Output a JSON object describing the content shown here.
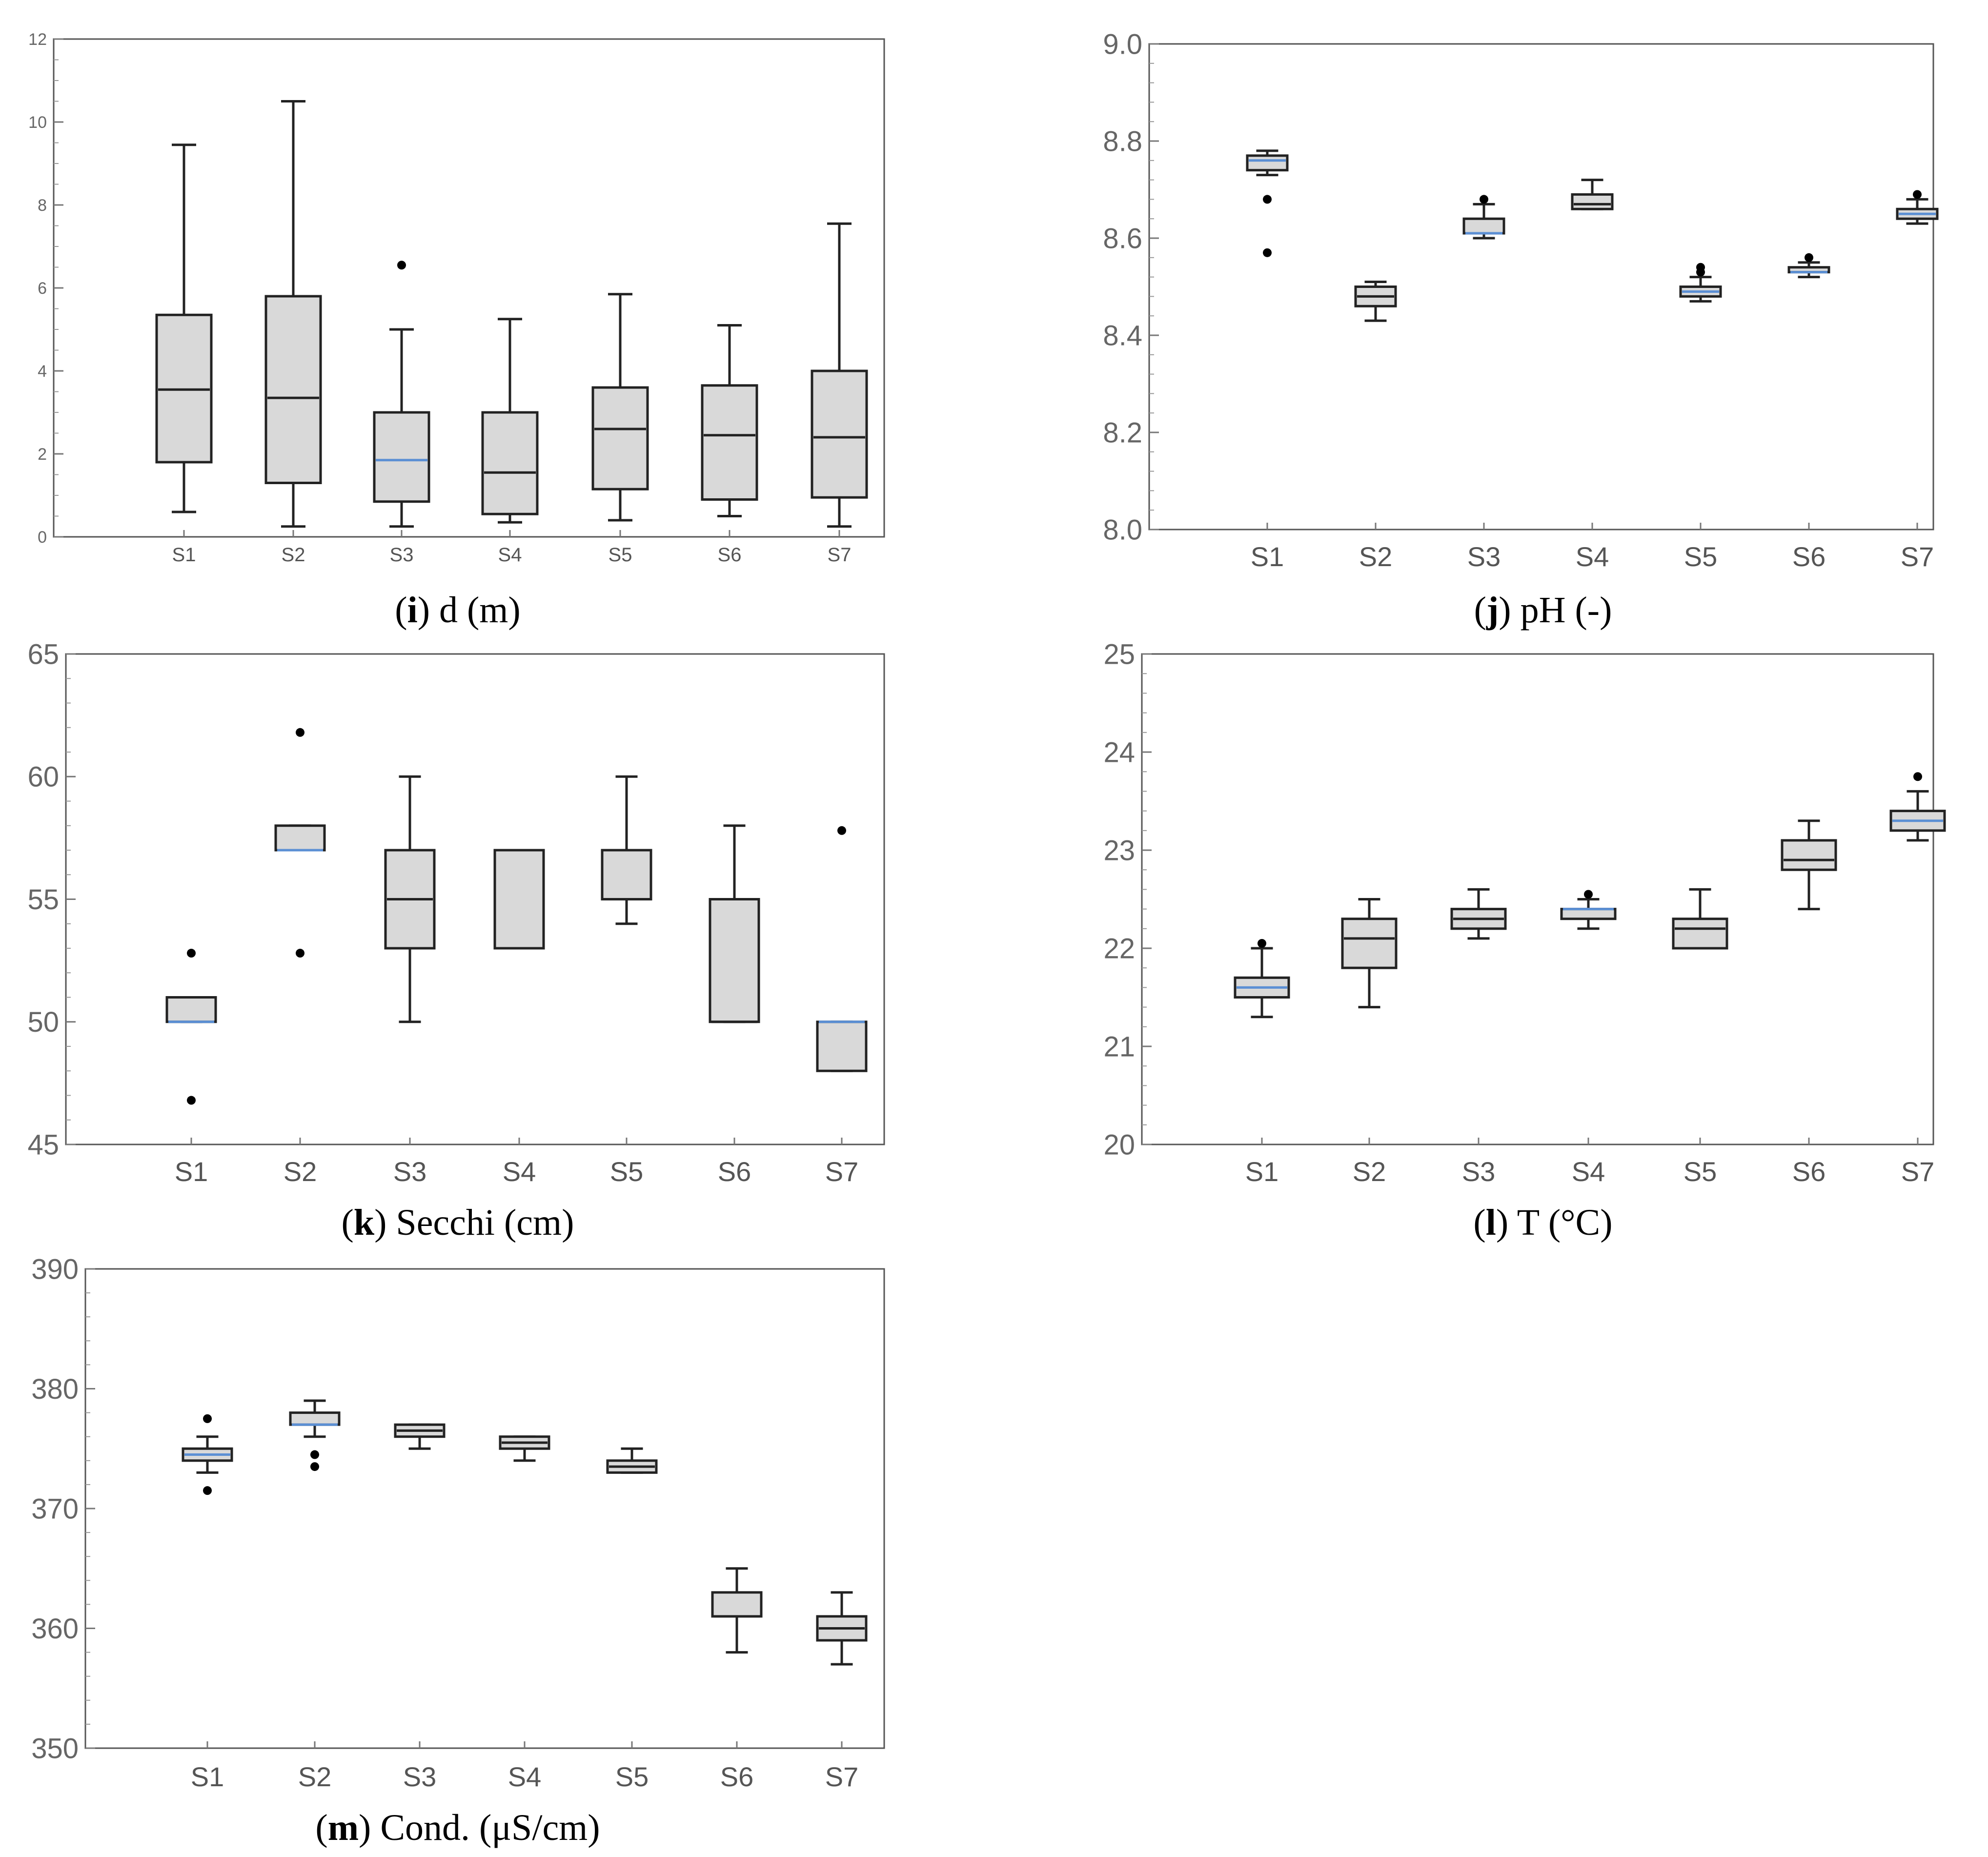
{
  "colors": {
    "box_fill": "#d9d9d9",
    "median_dark": "#222222",
    "median_blue": "#5b8fd4",
    "frame": "#555555"
  },
  "chart_data": [
    {
      "id": "i",
      "type": "box",
      "title": "(i) d (m)",
      "caption_letter": "i",
      "caption_rest": " d (m)",
      "ylim": [
        0,
        12
      ],
      "yticks": [
        0,
        2,
        4,
        6,
        8,
        10,
        12
      ],
      "ytick_labels": [
        "0",
        "2",
        "4",
        "6",
        "8",
        "10",
        "12"
      ],
      "categories": [
        "S1",
        "S2",
        "S3",
        "S4",
        "S5",
        "S6",
        "S7"
      ],
      "boxes": [
        {
          "min": 0.6,
          "q1": 1.8,
          "median": 3.55,
          "q3": 5.35,
          "max": 9.45,
          "median_color": "dark",
          "outliers": []
        },
        {
          "min": 0.25,
          "q1": 1.3,
          "median": 3.35,
          "q3": 5.8,
          "max": 10.5,
          "median_color": "dark",
          "outliers": []
        },
        {
          "min": 0.25,
          "q1": 0.85,
          "median": 1.85,
          "q3": 3.0,
          "max": 5.0,
          "median_color": "blue",
          "outliers": [
            6.55
          ]
        },
        {
          "min": 0.35,
          "q1": 0.55,
          "median": 1.55,
          "q3": 3.0,
          "max": 5.25,
          "median_color": "dark",
          "outliers": []
        },
        {
          "min": 0.4,
          "q1": 1.15,
          "median": 2.6,
          "q3": 3.6,
          "max": 5.85,
          "median_color": "dark",
          "outliers": []
        },
        {
          "min": 0.5,
          "q1": 0.9,
          "median": 2.45,
          "q3": 3.65,
          "max": 5.1,
          "median_color": "dark",
          "outliers": []
        },
        {
          "min": 0.25,
          "q1": 0.95,
          "median": 2.4,
          "q3": 4.0,
          "max": 7.55,
          "median_color": "dark",
          "outliers": []
        }
      ]
    },
    {
      "id": "j",
      "type": "box",
      "title": "(j) pH (-)",
      "caption_letter": "j",
      "caption_rest": " pH (-)",
      "ylim": [
        8.0,
        9.0
      ],
      "yticks": [
        8.0,
        8.2,
        8.4,
        8.6,
        8.8,
        9.0
      ],
      "ytick_labels": [
        "8.0",
        "8.2",
        "8.4",
        "8.6",
        "8.8",
        "9.0"
      ],
      "categories": [
        "S1",
        "S2",
        "S3",
        "S4",
        "S5",
        "S6",
        "S7"
      ],
      "boxes": [
        {
          "min": 8.73,
          "q1": 8.74,
          "median": 8.76,
          "q3": 8.77,
          "max": 8.78,
          "median_color": "blue",
          "outliers": [
            8.68,
            8.57
          ]
        },
        {
          "min": 8.43,
          "q1": 8.46,
          "median": 8.48,
          "q3": 8.5,
          "max": 8.51,
          "median_color": "dark",
          "outliers": []
        },
        {
          "min": 8.6,
          "q1": 8.61,
          "median": 8.61,
          "q3": 8.64,
          "max": 8.67,
          "median_color": "blue",
          "outliers": [
            8.68
          ]
        },
        {
          "min": 8.66,
          "q1": 8.66,
          "median": 8.67,
          "q3": 8.69,
          "max": 8.72,
          "median_color": "dark",
          "outliers": []
        },
        {
          "min": 8.47,
          "q1": 8.48,
          "median": 8.49,
          "q3": 8.5,
          "max": 8.52,
          "median_color": "blue",
          "outliers": [
            8.54,
            8.53
          ]
        },
        {
          "min": 8.52,
          "q1": 8.53,
          "median": 8.53,
          "q3": 8.54,
          "max": 8.55,
          "median_color": "blue",
          "outliers": [
            8.56
          ]
        },
        {
          "min": 8.63,
          "q1": 8.64,
          "median": 8.65,
          "q3": 8.66,
          "max": 8.68,
          "median_color": "blue",
          "outliers": [
            8.69
          ]
        }
      ]
    },
    {
      "id": "k",
      "type": "box",
      "title": "(k) Secchi (cm)",
      "caption_letter": "k",
      "caption_rest": " Secchi (cm)",
      "ylim": [
        45,
        65
      ],
      "yticks": [
        45,
        50,
        55,
        60,
        65
      ],
      "ytick_labels": [
        "45",
        "50",
        "55",
        "60",
        "65"
      ],
      "categories": [
        "S1",
        "S2",
        "S3",
        "S4",
        "S5",
        "S6",
        "S7"
      ],
      "boxes": [
        {
          "min": 50,
          "q1": 50,
          "median": 50,
          "q3": 51,
          "max": 51,
          "median_color": "blue",
          "outliers": [
            52.8,
            46.8
          ]
        },
        {
          "min": 57,
          "q1": 57,
          "median": 57,
          "q3": 58,
          "max": 58,
          "median_color": "blue",
          "outliers": [
            61.8,
            52.8
          ]
        },
        {
          "min": 50,
          "q1": 53,
          "median": 55,
          "q3": 57,
          "max": 60,
          "median_color": "dark",
          "outliers": []
        },
        {
          "min": 53,
          "q1": 53,
          "median": 57,
          "q3": 57,
          "max": 57,
          "median_color": "dark",
          "outliers": []
        },
        {
          "min": 54,
          "q1": 55,
          "median": 57,
          "q3": 57,
          "max": 60,
          "median_color": "dark",
          "outliers": []
        },
        {
          "min": 50,
          "q1": 50,
          "median": 50,
          "q3": 55,
          "max": 58,
          "median_color": "dark",
          "outliers": []
        },
        {
          "min": 48,
          "q1": 48,
          "median": 50,
          "q3": 50,
          "max": 50,
          "median_color": "blue",
          "outliers": [
            57.8
          ]
        }
      ]
    },
    {
      "id": "l",
      "type": "box",
      "title": "(l) T (°C)",
      "caption_letter": "l",
      "caption_rest": " T (°C)",
      "ylim": [
        20,
        25
      ],
      "yticks": [
        20,
        21,
        22,
        23,
        24,
        25
      ],
      "ytick_labels": [
        "20",
        "21",
        "22",
        "23",
        "24",
        "25"
      ],
      "categories": [
        "S1",
        "S2",
        "S3",
        "S4",
        "S5",
        "S6",
        "S7"
      ],
      "boxes": [
        {
          "min": 21.3,
          "q1": 21.5,
          "median": 21.6,
          "q3": 21.7,
          "max": 22.0,
          "median_color": "blue",
          "outliers": [
            22.05
          ]
        },
        {
          "min": 21.4,
          "q1": 21.8,
          "median": 22.1,
          "q3": 22.3,
          "max": 22.5,
          "median_color": "dark",
          "outliers": []
        },
        {
          "min": 22.1,
          "q1": 22.2,
          "median": 22.3,
          "q3": 22.4,
          "max": 22.6,
          "median_color": "dark",
          "outliers": []
        },
        {
          "min": 22.2,
          "q1": 22.3,
          "median": 22.4,
          "q3": 22.4,
          "max": 22.5,
          "median_color": "blue",
          "outliers": [
            22.55
          ]
        },
        {
          "min": 22.0,
          "q1": 22.0,
          "median": 22.2,
          "q3": 22.3,
          "max": 22.6,
          "median_color": "dark",
          "outliers": []
        },
        {
          "min": 22.4,
          "q1": 22.8,
          "median": 22.9,
          "q3": 23.1,
          "max": 23.3,
          "median_color": "dark",
          "outliers": []
        },
        {
          "min": 23.1,
          "q1": 23.2,
          "median": 23.3,
          "q3": 23.4,
          "max": 23.6,
          "median_color": "blue",
          "outliers": [
            23.75
          ]
        }
      ]
    },
    {
      "id": "m",
      "type": "box",
      "title": "(m) Cond. (μS/cm)",
      "caption_letter": "m",
      "caption_rest": " Cond. (μS/cm)",
      "ylim": [
        350,
        390
      ],
      "yticks": [
        350,
        360,
        370,
        380,
        390
      ],
      "ytick_labels": [
        "350",
        "360",
        "370",
        "380",
        "390"
      ],
      "categories": [
        "S1",
        "S2",
        "S3",
        "S4",
        "S5",
        "S6",
        "S7"
      ],
      "boxes": [
        {
          "min": 373,
          "q1": 374,
          "median": 374.5,
          "q3": 375,
          "max": 376,
          "median_color": "blue",
          "outliers": [
            377.5,
            371.5
          ]
        },
        {
          "min": 376,
          "q1": 377,
          "median": 377,
          "q3": 378,
          "max": 379,
          "median_color": "blue",
          "outliers": [
            374.5,
            373.5
          ]
        },
        {
          "min": 375,
          "q1": 376,
          "median": 376.5,
          "q3": 377,
          "max": 377,
          "median_color": "dark",
          "outliers": []
        },
        {
          "min": 374,
          "q1": 375,
          "median": 375.5,
          "q3": 376,
          "max": 376,
          "median_color": "dark",
          "outliers": []
        },
        {
          "min": 373,
          "q1": 373,
          "median": 373.5,
          "q3": 374,
          "max": 375,
          "median_color": "dark",
          "outliers": []
        },
        {
          "min": 358,
          "q1": 361,
          "median": 361,
          "q3": 363,
          "max": 365,
          "median_color": "dark",
          "outliers": []
        },
        {
          "min": 357,
          "q1": 359,
          "median": 360,
          "q3": 361,
          "max": 363,
          "median_color": "dark",
          "outliers": []
        }
      ]
    }
  ]
}
